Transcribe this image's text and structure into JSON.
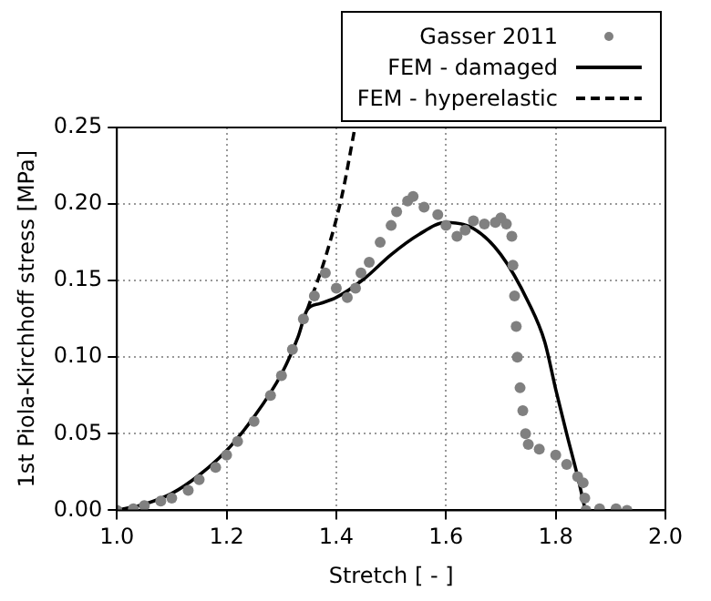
{
  "chart_data": {
    "type": "line",
    "xlabel": "Stretch [ - ]",
    "ylabel": "1st Piola-Kirchhoff stress [MPa]",
    "xlim": [
      1.0,
      2.0
    ],
    "xticks": [
      {
        "value": 1.0,
        "label": "1.0"
      },
      {
        "value": 1.2,
        "label": "1.2"
      },
      {
        "value": 1.4,
        "label": "1.4"
      },
      {
        "value": 1.6,
        "label": "1.6"
      },
      {
        "value": 1.8,
        "label": "1.8"
      },
      {
        "value": 2.0,
        "label": "2.0"
      }
    ],
    "ylim": [
      0,
      0.25
    ],
    "yticks": [
      {
        "value": 0,
        "label": "0.00"
      },
      {
        "value": 0.05,
        "label": "0.05"
      },
      {
        "value": 0.1,
        "label": "0.10"
      },
      {
        "value": 0.15,
        "label": "0.15"
      },
      {
        "value": 0.2,
        "label": "0.20"
      },
      {
        "value": 0.25,
        "label": "0.25"
      }
    ],
    "grid": true,
    "legend": "top right",
    "series": [
      {
        "name": "Gasser 2011",
        "type": "scatter",
        "marker": "circle",
        "color": "#808080",
        "x": [
          1.0,
          1.03,
          1.05,
          1.08,
          1.1,
          1.13,
          1.15,
          1.18,
          1.2,
          1.22,
          1.25,
          1.28,
          1.3,
          1.32,
          1.34,
          1.36,
          1.38,
          1.4,
          1.42,
          1.435,
          1.445,
          1.46,
          1.48,
          1.5,
          1.51,
          1.53,
          1.54,
          1.56,
          1.585,
          1.6,
          1.62,
          1.635,
          1.65,
          1.67,
          1.69,
          1.7,
          1.71,
          1.72,
          1.722,
          1.725,
          1.728,
          1.73,
          1.735,
          1.74,
          1.745,
          1.75,
          1.77,
          1.8,
          1.82,
          1.84,
          1.85,
          1.853,
          1.855,
          1.88,
          1.91,
          1.93
        ],
        "values": [
          0,
          0.001,
          0.003,
          0.006,
          0.008,
          0.013,
          0.02,
          0.028,
          0.036,
          0.045,
          0.058,
          0.075,
          0.088,
          0.105,
          0.125,
          0.14,
          0.155,
          0.145,
          0.139,
          0.145,
          0.155,
          0.162,
          0.175,
          0.186,
          0.195,
          0.202,
          0.205,
          0.198,
          0.193,
          0.186,
          0.179,
          0.183,
          0.189,
          0.187,
          0.188,
          0.191,
          0.187,
          0.179,
          0.16,
          0.14,
          0.12,
          0.1,
          0.08,
          0.065,
          0.05,
          0.043,
          0.04,
          0.036,
          0.03,
          0.022,
          0.018,
          0.008,
          0,
          0.001,
          0.001,
          0
        ]
      },
      {
        "name": "FEM - damaged",
        "line_style": "solid",
        "marker": "none",
        "color": "#000000",
        "x": [
          1.0,
          1.05,
          1.1,
          1.15,
          1.2,
          1.25,
          1.3,
          1.33,
          1.347,
          1.37,
          1.4,
          1.45,
          1.5,
          1.55,
          1.6,
          1.65,
          1.7,
          1.75,
          1.78,
          1.8,
          1.82,
          1.84,
          1.854
        ],
        "values": [
          0,
          0.004,
          0.011,
          0.023,
          0.039,
          0.061,
          0.089,
          0.113,
          0.131,
          0.135,
          0.139,
          0.151,
          0.167,
          0.18,
          0.188,
          0.184,
          0.167,
          0.136,
          0.11,
          0.079,
          0.05,
          0.022,
          0
        ]
      },
      {
        "name": "FEM - hyperelastic",
        "line_style": "dashed",
        "marker": "none",
        "color": "#000000",
        "x": [
          1.347,
          1.38,
          1.41,
          1.434
        ],
        "values": [
          0.131,
          0.165,
          0.205,
          0.25
        ]
      }
    ]
  }
}
